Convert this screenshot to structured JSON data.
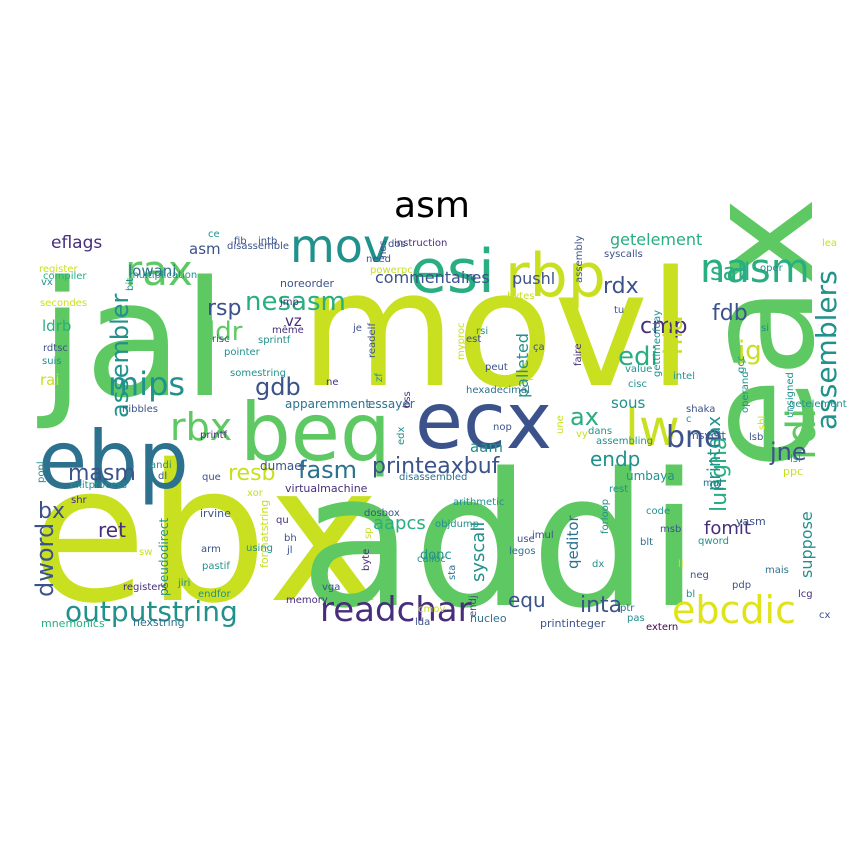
{
  "title": "asm",
  "words": [
    {
      "text": "ebx",
      "color": "#c8e020"
    },
    {
      "text": "addi",
      "color": "#5ec962"
    },
    {
      "text": "jal",
      "color": "#5ec962"
    },
    {
      "text": "movl",
      "color": "#c8e020"
    },
    {
      "text": "eax",
      "color": "#5ec962"
    },
    {
      "text": "ecx",
      "color": "#3b528b"
    },
    {
      "text": "ebp",
      "color": "#2c728e"
    },
    {
      "text": "beq",
      "color": "#5ec962"
    },
    {
      "text": "rbp",
      "color": "#c8e020"
    },
    {
      "text": "esi",
      "color": "#28ae80"
    },
    {
      "text": "mov",
      "color": "#21918c"
    },
    {
      "text": "rax",
      "color": "#5ec962"
    },
    {
      "text": "nasm",
      "color": "#28ae80"
    },
    {
      "text": "lw",
      "color": "#c8e020"
    },
    {
      "text": "rdi",
      "color": "#5ec962"
    },
    {
      "text": "readchar",
      "color": "#472d7b"
    },
    {
      "text": "ebcdic",
      "color": "#e0e21a"
    },
    {
      "text": "outputstring",
      "color": "#21918c"
    },
    {
      "text": "mips",
      "color": "#21918c"
    },
    {
      "text": "rbx",
      "color": "#5ec962"
    },
    {
      "text": "assemblers",
      "color": "#21918c"
    },
    {
      "text": "printeaxbuf",
      "color": "#3b528b"
    },
    {
      "text": "bne",
      "color": "#3b528b"
    },
    {
      "text": "assembler",
      "color": "#21918c"
    },
    {
      "text": "nesasm",
      "color": "#28ae80"
    },
    {
      "text": "lungha",
      "color": "#28ae80"
    },
    {
      "text": "fasm",
      "color": "#2c728e"
    },
    {
      "text": "masm",
      "color": "#3b528b"
    },
    {
      "text": "resb",
      "color": "#c8e020"
    },
    {
      "text": "jne",
      "color": "#3b528b"
    },
    {
      "text": "gdb",
      "color": "#3b528b"
    },
    {
      "text": "ldr",
      "color": "#5ec962"
    },
    {
      "text": "rsp",
      "color": "#3b528b"
    },
    {
      "text": "cmp",
      "color": "#472d7b"
    },
    {
      "text": "fdb",
      "color": "#3b528b"
    },
    {
      "text": "edi",
      "color": "#28ae80"
    },
    {
      "text": "jg",
      "color": "#c8e020"
    },
    {
      "text": "sall",
      "color": "#28ae80"
    },
    {
      "text": "rdx",
      "color": "#3b528b"
    },
    {
      "text": "hla",
      "color": "#c8e020"
    },
    {
      "text": "ax",
      "color": "#28ae80"
    },
    {
      "text": "endp",
      "color": "#21918c"
    },
    {
      "text": "inta",
      "color": "#3b528b"
    },
    {
      "text": "equ",
      "color": "#3b528b"
    },
    {
      "text": "aapcs",
      "color": "#28ae80"
    },
    {
      "text": "syscall",
      "color": "#21918c"
    },
    {
      "text": "palleted",
      "color": "#21918c"
    },
    {
      "text": "printeax",
      "color": "#21918c"
    },
    {
      "text": "dword",
      "color": "#3b528b"
    },
    {
      "text": "bx",
      "color": "#3b528b"
    },
    {
      "text": "ret",
      "color": "#472d7b"
    },
    {
      "text": "suppose",
      "color": "#21918c"
    },
    {
      "text": "fomit",
      "color": "#472d7b"
    },
    {
      "text": "commentaires",
      "color": "#3b528b"
    },
    {
      "text": "pushl",
      "color": "#3b528b"
    },
    {
      "text": "getelement",
      "color": "#28ae80"
    },
    {
      "text": "eflags",
      "color": "#472d7b"
    },
    {
      "text": "lowani",
      "color": "#2c728e"
    },
    {
      "text": "asm",
      "color": "#3b528b"
    },
    {
      "text": "vz",
      "color": "#472d7b"
    },
    {
      "text": "ldrb",
      "color": "#28ae80"
    },
    {
      "text": "rai",
      "color": "#c8e020"
    },
    {
      "text": "sous",
      "color": "#21918c"
    },
    {
      "text": "aam",
      "color": "#21918c"
    },
    {
      "text": "qeditor",
      "color": "#2c728e"
    },
    {
      "text": "umbaya",
      "color": "#21918c"
    },
    {
      "text": "donc",
      "color": "#21918c"
    },
    {
      "text": "apparemment",
      "color": "#2c728e"
    },
    {
      "text": "essayer",
      "color": "#2c728e"
    },
    {
      "text": "dumael",
      "color": "#3b528b"
    },
    {
      "text": "msvcrt",
      "color": "#3b528b"
    },
    {
      "text": "pseudodirect",
      "color": "#21918c"
    },
    {
      "text": "formatstring",
      "color": "#c8e020"
    },
    {
      "text": "virtualmachine",
      "color": "#472d7b"
    },
    {
      "text": "hexstring",
      "color": "#2c728e"
    },
    {
      "text": "printinteger",
      "color": "#3b528b"
    },
    {
      "text": "mnemonics",
      "color": "#28ae80"
    },
    {
      "text": "exitprocess",
      "color": "#21918c"
    },
    {
      "text": "noreorder",
      "color": "#3b528b"
    },
    {
      "text": "disassemble",
      "color": "#3b528b"
    },
    {
      "text": "disassembled",
      "color": "#2c728e"
    },
    {
      "text": "hexadecimal",
      "color": "#2c728e"
    },
    {
      "text": "instruction",
      "color": "#472d7b"
    },
    {
      "text": "syscalls",
      "color": "#3b528b"
    },
    {
      "text": "arithmetic",
      "color": "#21918c"
    },
    {
      "text": "nucleo",
      "color": "#2c728e"
    },
    {
      "text": "extern",
      "color": "#440154"
    },
    {
      "text": "objdump",
      "color": "#21918c"
    },
    {
      "text": "irvine",
      "color": "#3b528b"
    },
    {
      "text": "registers",
      "color": "#472d7b"
    },
    {
      "text": "sprintf",
      "color": "#21918c"
    },
    {
      "text": "pointer",
      "color": "#21918c"
    },
    {
      "text": "somestring",
      "color": "#21918c"
    },
    {
      "text": "nibbles",
      "color": "#3b528b"
    },
    {
      "text": "printf",
      "color": "#472d7b"
    },
    {
      "text": "intb",
      "color": "#3b528b"
    },
    {
      "text": "fib",
      "color": "#3b528b"
    },
    {
      "text": "ce",
      "color": "#21918c"
    },
    {
      "text": "nes",
      "color": "#3b528b"
    },
    {
      "text": "dos",
      "color": "#3b528b"
    },
    {
      "text": "need",
      "color": "#3b528b"
    },
    {
      "text": "jmp",
      "color": "#472d7b"
    },
    {
      "text": "même",
      "color": "#472d7b"
    },
    {
      "text": "je",
      "color": "#3b528b"
    },
    {
      "text": "rsi",
      "color": "#21918c"
    },
    {
      "text": "est",
      "color": "#3b528b"
    },
    {
      "text": "ça",
      "color": "#3b528b"
    },
    {
      "text": "peut",
      "color": "#3b528b"
    },
    {
      "text": "ne",
      "color": "#472d7b"
    },
    {
      "text": "zf",
      "color": "#21918c"
    },
    {
      "text": "bss",
      "color": "#472d7b"
    },
    {
      "text": "edx",
      "color": "#21918c"
    },
    {
      "text": "nop",
      "color": "#3b528b"
    },
    {
      "text": "cisc",
      "color": "#21918c"
    },
    {
      "text": "intel",
      "color": "#21918c"
    },
    {
      "text": "gcc",
      "color": "#21918c"
    },
    {
      "text": "shaka",
      "color": "#3b528b"
    },
    {
      "text": "lsb",
      "color": "#3b528b"
    },
    {
      "text": "lsl",
      "color": "#21918c"
    },
    {
      "text": "ppc",
      "color": "#c8e020"
    },
    {
      "text": "mul",
      "color": "#2c728e"
    },
    {
      "text": "rest",
      "color": "#21918c"
    },
    {
      "text": "yasm",
      "color": "#3b528b"
    },
    {
      "text": "qword",
      "color": "#21918c"
    },
    {
      "text": "code",
      "color": "#21918c"
    },
    {
      "text": "msb",
      "color": "#3b528b"
    },
    {
      "text": "blt",
      "color": "#2c728e"
    },
    {
      "text": "forloop",
      "color": "#21918c"
    },
    {
      "text": "imul",
      "color": "#3b528b"
    },
    {
      "text": "use",
      "color": "#3b528b"
    },
    {
      "text": "legos",
      "color": "#2c728e"
    },
    {
      "text": "li",
      "color": "#c8e020"
    },
    {
      "text": "neg",
      "color": "#3b528b"
    },
    {
      "text": "mais",
      "color": "#2c728e"
    },
    {
      "text": "pdp",
      "color": "#3b528b"
    },
    {
      "text": "bl",
      "color": "#21918c"
    },
    {
      "text": "lcg",
      "color": "#472d7b"
    },
    {
      "text": "cx",
      "color": "#3b528b"
    },
    {
      "text": "pas",
      "color": "#21918c"
    },
    {
      "text": "ptr",
      "color": "#2c728e"
    },
    {
      "text": "sta",
      "color": "#2c728e"
    },
    {
      "text": "calloc",
      "color": "#21918c"
    },
    {
      "text": "byte",
      "color": "#472d7b"
    },
    {
      "text": "vga",
      "color": "#3b528b"
    },
    {
      "text": "memory",
      "color": "#472d7b"
    },
    {
      "text": "endj",
      "color": "#3b528b"
    },
    {
      "text": "lda",
      "color": "#3b528b"
    },
    {
      "text": "cmov",
      "color": "#c8e020"
    },
    {
      "text": "sp",
      "color": "#c8e020"
    },
    {
      "text": "dosbox",
      "color": "#3b528b"
    },
    {
      "text": "bh",
      "color": "#3b528b"
    },
    {
      "text": "jl",
      "color": "#3b528b"
    },
    {
      "text": "qu",
      "color": "#472d7b"
    },
    {
      "text": "xor",
      "color": "#c8e020"
    },
    {
      "text": "arm",
      "color": "#3b528b"
    },
    {
      "text": "pastif",
      "color": "#21918c"
    },
    {
      "text": "jiri",
      "color": "#21918c"
    },
    {
      "text": "endfor",
      "color": "#21918c"
    },
    {
      "text": "sw",
      "color": "#c8e020"
    },
    {
      "text": "shr",
      "color": "#472d7b"
    },
    {
      "text": "popl",
      "color": "#21918c"
    },
    {
      "text": "andi",
      "color": "#21918c"
    },
    {
      "text": "dl",
      "color": "#3b528b"
    },
    {
      "text": "que",
      "color": "#3b528b"
    },
    {
      "text": "using",
      "color": "#21918c"
    },
    {
      "text": "risc",
      "color": "#3b528b"
    },
    {
      "text": "bit",
      "color": "#21918c"
    },
    {
      "text": "multiplication",
      "color": "#21918c"
    },
    {
      "text": "vx",
      "color": "#21918c"
    },
    {
      "text": "register",
      "color": "#c8e020"
    },
    {
      "text": "compiler",
      "color": "#28ae80"
    },
    {
      "text": "secondes",
      "color": "#c8e020"
    },
    {
      "text": "rdtsc",
      "color": "#3b528b"
    },
    {
      "text": "suis",
      "color": "#21918c"
    },
    {
      "text": "powerpc",
      "color": "#c8e020"
    },
    {
      "text": "readelf",
      "color": "#3b528b"
    },
    {
      "text": "myproc",
      "color": "#c8e020"
    },
    {
      "text": "like",
      "color": "#c8e020"
    },
    {
      "text": "faire",
      "color": "#472d7b"
    },
    {
      "text": "assembly",
      "color": "#3b528b"
    },
    {
      "text": "bytes",
      "color": "#c8e020"
    },
    {
      "text": "tu",
      "color": "#3b528b"
    },
    {
      "text": "value",
      "color": "#21918c"
    },
    {
      "text": "si",
      "color": "#21918c"
    },
    {
      "text": "oper",
      "color": "#21918c"
    },
    {
      "text": "lea",
      "color": "#c8e020"
    },
    {
      "text": "getelement",
      "color": "#21918c"
    },
    {
      "text": "unsigned",
      "color": "#21918c"
    },
    {
      "text": "shl",
      "color": "#c8e020"
    },
    {
      "text": "operand",
      "color": "#21918c"
    },
    {
      "text": "gettimeofday",
      "color": "#21918c"
    },
    {
      "text": "assembling",
      "color": "#21918c"
    },
    {
      "text": "une",
      "color": "#c8e020"
    },
    {
      "text": "vy",
      "color": "#c8e020"
    },
    {
      "text": "dans",
      "color": "#21918c"
    },
    {
      "text": "dx",
      "color": "#21918c"
    },
    {
      "text": "ra",
      "color": "#3b528b"
    },
    {
      "text": "c",
      "color": "#21918c"
    }
  ]
}
